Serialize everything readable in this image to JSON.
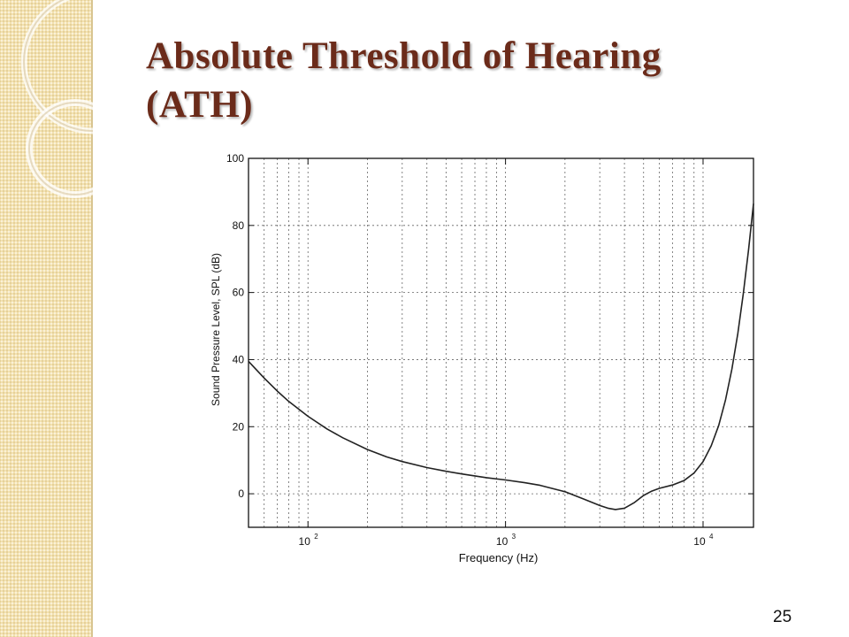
{
  "slide": {
    "title_line1": "Absolute Threshold of Hearing",
    "title_line2": "(ATH)",
    "page_number": "25",
    "title_color": "#6b2b1a",
    "strip_color": "#f3e2b0"
  },
  "chart_data": {
    "type": "line",
    "title": "",
    "xlabel": "Frequency (Hz)",
    "ylabel": "Sound Pressure Level, SPL (dB)",
    "x_scale": "log",
    "xlim": [
      50,
      18000
    ],
    "ylim": [
      -10,
      100
    ],
    "x_ticks": [
      {
        "value": 100,
        "base": "10",
        "exp": "2"
      },
      {
        "value": 1000,
        "base": "10",
        "exp": "3"
      },
      {
        "value": 10000,
        "base": "10",
        "exp": "4"
      }
    ],
    "y_ticks": [
      0,
      20,
      40,
      60,
      80,
      100
    ],
    "grid": true,
    "series": [
      {
        "color": "#222222",
        "x": [
          50,
          60,
          70,
          80,
          100,
          125,
          150,
          200,
          250,
          300,
          400,
          500,
          600,
          800,
          1000,
          1250,
          1500,
          2000,
          2500,
          3000,
          3300,
          3600,
          4000,
          4500,
          5000,
          5500,
          6000,
          7000,
          8000,
          9000,
          10000,
          11000,
          12000,
          13000,
          14000,
          15000,
          16000,
          17000,
          18000
        ],
        "y": [
          39.5,
          34.5,
          30.6,
          27.5,
          23.1,
          19.3,
          16.7,
          13.2,
          11.0,
          9.6,
          7.8,
          6.7,
          5.9,
          4.8,
          4.1,
          3.3,
          2.5,
          0.6,
          -1.6,
          -3.5,
          -4.3,
          -4.7,
          -4.3,
          -2.6,
          -0.5,
          0.8,
          1.6,
          2.6,
          3.9,
          6.2,
          9.6,
          14.3,
          20.4,
          28.0,
          37.2,
          47.8,
          59.9,
          72.9,
          86.5
        ]
      }
    ]
  }
}
